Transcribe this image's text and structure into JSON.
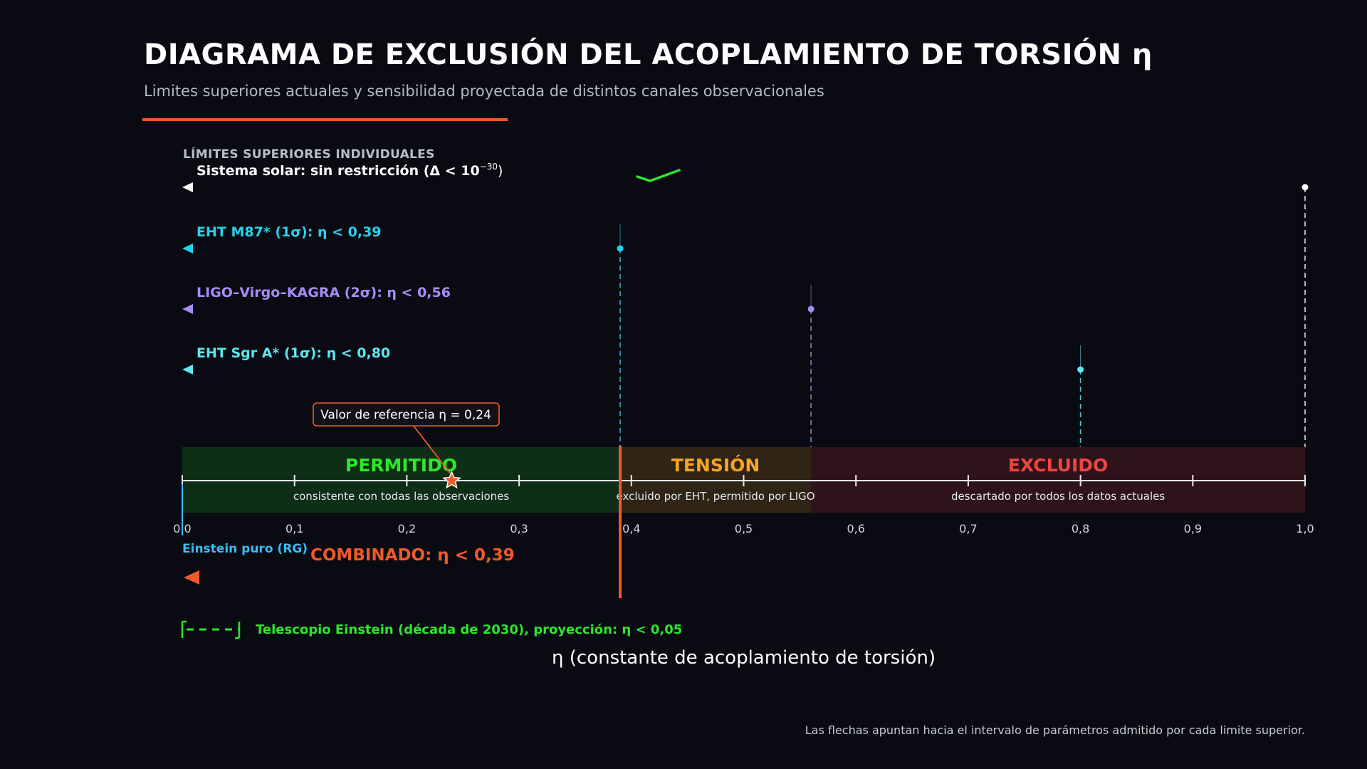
{
  "header": {
    "title": "DIAGRAMA DE EXCLUSIÓN DEL ACOPLAMIENTO DE TORSIÓN  η",
    "subtitle": "Limites superiores actuales y sensibilidad proyectada de distintos canales observacionales"
  },
  "footnote": "Las flechas apuntan hacia el intervalo de parámetros admitido por cada limite superior.",
  "chart_data": {
    "type": "exclusion-diagram",
    "xlabel": "η  (constante de acoplamiento de torsión)",
    "xlim": [
      0,
      1.0
    ],
    "ticks": [
      0.0,
      0.1,
      0.2,
      0.3,
      0.4,
      0.5,
      0.6,
      0.7,
      0.8,
      0.9,
      1.0
    ],
    "tick_labels": [
      "0,0",
      "0,1",
      "0,2",
      "0,3",
      "0,4",
      "0,5",
      "0,6",
      "0,7",
      "0,8",
      "0,9",
      "1,0"
    ],
    "section_label": "LÍMITES SUPERIORES INDIVIDUALES",
    "limits": [
      {
        "label": "Sistema solar: sin restricción  (Δ < 10",
        "label_sup": "−30",
        "label_end": ")",
        "upper": 1.0,
        "color": "#ffffff"
      },
      {
        "label": "EHT M87* (1σ):  η < 0,39",
        "upper": 0.39,
        "color": "#22d3ee"
      },
      {
        "label": "LIGO–Virgo–KAGRA (2σ):  η < 0,56",
        "upper": 0.56,
        "color": "#a78bfa"
      },
      {
        "label": "EHT Sgr A* (1σ):  η < 0,80",
        "upper": 0.8,
        "color": "#5ee7f0"
      }
    ],
    "regions": [
      {
        "name": "PERMITIDO",
        "from": 0.0,
        "to": 0.39,
        "description": "consistente con todas las observaciones",
        "color": "#2ee62e"
      },
      {
        "name": "TENSIÓN",
        "from": 0.39,
        "to": 0.56,
        "description": "excluido por EHT, permitido por LIGO",
        "color": "#f5a524"
      },
      {
        "name": "EXCLUIDO",
        "from": 0.56,
        "to": 1.0,
        "description": "descartado por todos los datos actuales",
        "color": "#ef4444"
      }
    ],
    "reference": {
      "label": "Valor de referencia  η = 0,24",
      "value": 0.24,
      "color": "#f05a28"
    },
    "einstein_label": "Einstein puro (RG)",
    "combined": {
      "label": "COMBINADO:  η < 0,39",
      "upper": 0.39,
      "color": "#f05a28"
    },
    "projection": {
      "label": "Telescopio Einstein (década de 2030), proyección:  η < 0,05",
      "upper": 0.05,
      "color": "#2ee62e"
    }
  }
}
